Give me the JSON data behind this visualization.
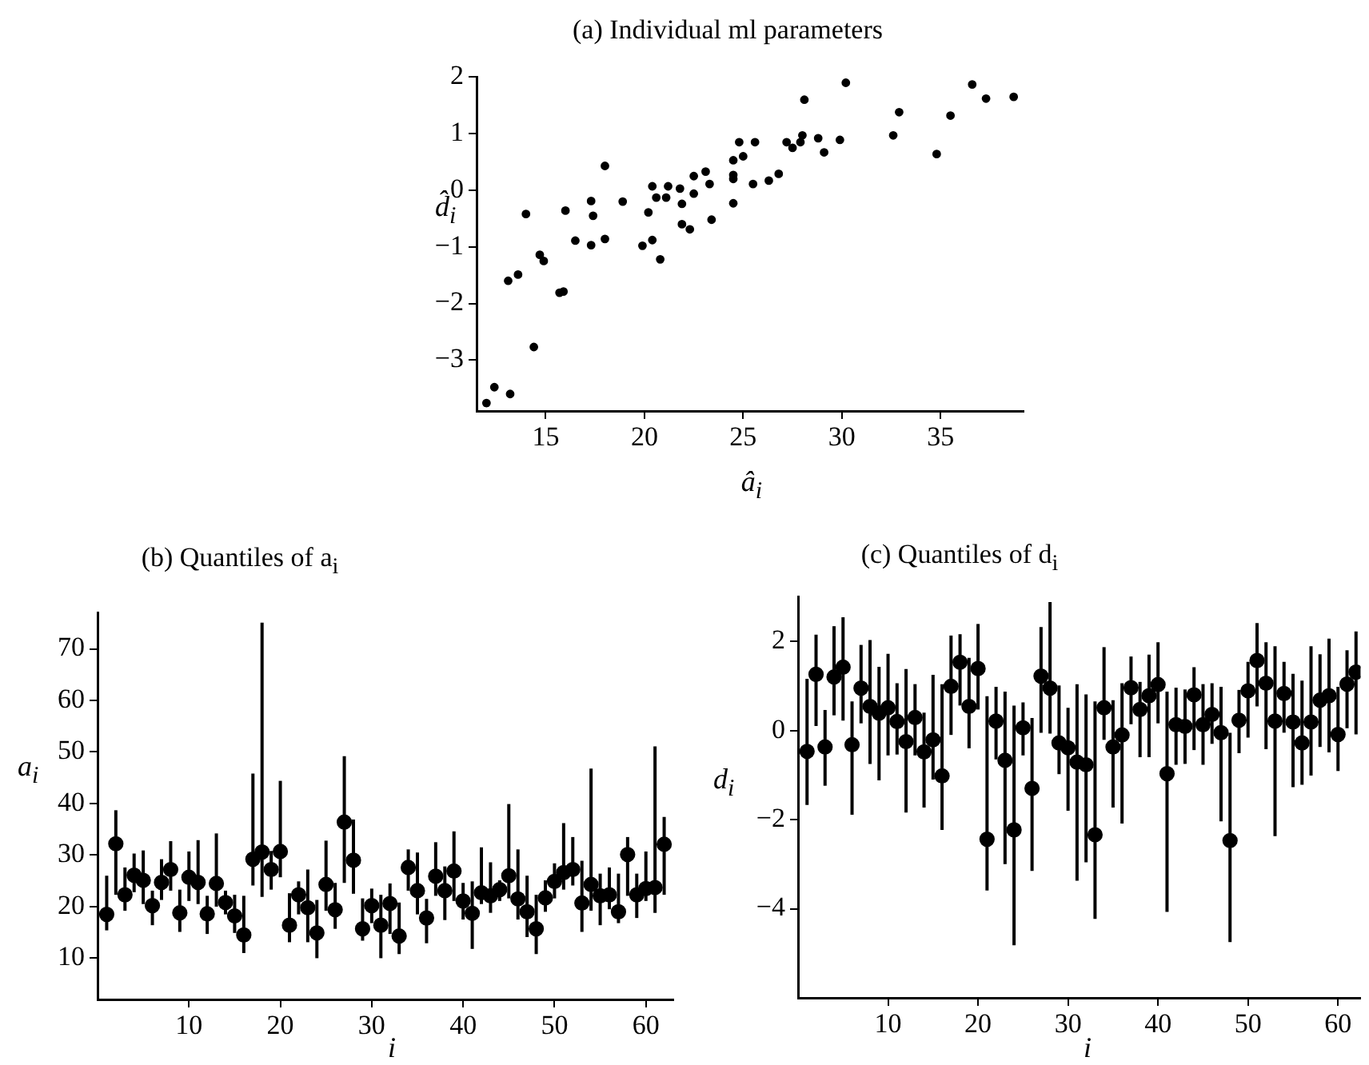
{
  "chart_data": [
    {
      "type": "scatter",
      "title": "(a) Individual ml parameters",
      "xlabel": "â$_{i}$",
      "ylabel": "d̂$_{i}$",
      "marker": "circle",
      "color": "#000000",
      "x": [
        12.0,
        12.4,
        13.2,
        13.1,
        13.6,
        14.0,
        14.4,
        14.7,
        14.9,
        15.7,
        15.9,
        16.0,
        16.5,
        17.3,
        17.3,
        17.4,
        18.0,
        18.0,
        18.9,
        19.9,
        20.2,
        20.4,
        20.4,
        20.6,
        20.8,
        21.1,
        21.2,
        21.8,
        21.9,
        21.9,
        22.3,
        22.5,
        22.5,
        23.1,
        23.3,
        23.4,
        24.5,
        24.5,
        24.5,
        24.5,
        24.8,
        25.0,
        25.5,
        25.6,
        26.3,
        26.8,
        27.2,
        27.5,
        27.9,
        28.0,
        28.1,
        28.8,
        29.1,
        29.9,
        30.2,
        32.6,
        32.9,
        34.8,
        35.5,
        36.6,
        37.3,
        38.7
      ],
      "values": [
        -3.76,
        -3.48,
        -3.6,
        -1.6,
        -1.49,
        -0.42,
        -2.77,
        -1.14,
        -1.25,
        -1.81,
        -1.79,
        -0.36,
        -0.89,
        -0.19,
        -0.97,
        -0.45,
        0.43,
        -0.86,
        -0.2,
        -0.98,
        -0.39,
        0.07,
        -0.88,
        -0.13,
        -1.22,
        -0.13,
        0.07,
        0.03,
        -0.24,
        -0.6,
        -0.69,
        -0.06,
        0.25,
        0.33,
        0.11,
        -0.52,
        0.53,
        0.27,
        0.2,
        -0.23,
        0.85,
        0.6,
        0.11,
        0.85,
        0.17,
        0.29,
        0.85,
        0.75,
        0.85,
        0.97,
        1.6,
        0.92,
        0.67,
        0.89,
        1.9,
        0.97,
        1.38,
        0.64,
        1.32,
        1.87,
        1.62,
        1.65
      ],
      "xlim": [
        11.5,
        39.2
      ],
      "ylim": [
        -3.9,
        2
      ],
      "xticks": [
        15,
        20,
        25,
        30,
        35
      ],
      "yticks": [
        -3,
        -2,
        -1,
        0,
        1,
        2
      ]
    },
    {
      "type": "scatter",
      "title": "(b) Quantiles of a$_{i}$",
      "xlabel": "i",
      "ylabel": "a$_{i}$",
      "marker": "circle",
      "color": "#000000",
      "x": [
        1,
        2,
        3,
        4,
        5,
        6,
        7,
        8,
        9,
        10,
        11,
        12,
        13,
        14,
        15,
        16,
        17,
        18,
        19,
        20,
        21,
        22,
        23,
        24,
        25,
        26,
        27,
        28,
        29,
        30,
        31,
        32,
        33,
        34,
        35,
        36,
        37,
        38,
        39,
        40,
        41,
        42,
        43,
        44,
        45,
        46,
        47,
        48,
        49,
        50,
        51,
        52,
        53,
        54,
        55,
        56,
        57,
        58,
        59,
        60,
        61,
        62
      ],
      "values": [
        18.5,
        32.2,
        22.3,
        26.1,
        25.1,
        20.2,
        24.7,
        27.2,
        18.8,
        25.7,
        24.7,
        18.6,
        24.5,
        20.8,
        18.2,
        14.5,
        29.2,
        30.6,
        27.2,
        30.7,
        16.4,
        22.3,
        19.8,
        14.9,
        24.3,
        19.4,
        36.4,
        29.0,
        15.7,
        20.2,
        16.4,
        20.6,
        14.3,
        27.6,
        23.1,
        17.8,
        25.9,
        23.1,
        26.9,
        21.1,
        18.7,
        22.7,
        22.1,
        23.3,
        26.0,
        21.5,
        19.0,
        15.7,
        21.7,
        24.9,
        26.6,
        27.2,
        20.7,
        24.3,
        22.1,
        22.3,
        19.0,
        30.1,
        22.3,
        23.5,
        23.7,
        32.1
      ],
      "errors": [
        [
          15.4,
          26.0
        ],
        [
          22.3,
          38.7
        ],
        [
          19.2,
          27.6
        ],
        [
          22.8,
          30.3
        ],
        [
          20.5,
          30.9
        ],
        [
          16.4,
          23.1
        ],
        [
          21.3,
          29.2
        ],
        [
          23.1,
          32.7
        ],
        [
          15.1,
          23.3
        ],
        [
          21.1,
          30.7
        ],
        [
          20.5,
          32.9
        ],
        [
          14.7,
          22.1
        ],
        [
          20.0,
          34.2
        ],
        [
          18.5,
          23.1
        ],
        [
          14.9,
          22.3
        ],
        [
          11.0,
          22.1
        ],
        [
          24.1,
          45.8
        ],
        [
          21.9,
          75.1
        ],
        [
          23.3,
          30.8
        ],
        [
          25.7,
          44.4
        ],
        [
          13.1,
          22.6
        ],
        [
          18.5,
          24.9
        ],
        [
          13.1,
          27.2
        ],
        [
          10.0,
          21.3
        ],
        [
          19.2,
          32.8
        ],
        [
          15.7,
          24.6
        ],
        [
          24.6,
          49.2
        ],
        [
          22.5,
          36.9
        ],
        [
          13.4,
          21.6
        ],
        [
          16.8,
          23.5
        ],
        [
          10.0,
          22.3
        ],
        [
          14.7,
          24.5
        ],
        [
          10.8,
          20.8
        ],
        [
          23.1,
          31.1
        ],
        [
          18.5,
          30.5
        ],
        [
          12.9,
          21.5
        ],
        [
          22.1,
          32.5
        ],
        [
          17.4,
          27.8
        ],
        [
          21.1,
          34.6
        ],
        [
          17.5,
          24.6
        ],
        [
          11.8,
          24.9
        ],
        [
          20.5,
          31.5
        ],
        [
          18.8,
          28.6
        ],
        [
          21.1,
          25.1
        ],
        [
          21.6,
          39.9
        ],
        [
          17.5,
          31.1
        ],
        [
          14.1,
          26.0
        ],
        [
          10.8,
          22.3
        ],
        [
          19.0,
          25.1
        ],
        [
          21.6,
          28.4
        ],
        [
          23.3,
          36.2
        ],
        [
          24.1,
          33.5
        ],
        [
          15.1,
          28.9
        ],
        [
          19.2,
          46.8
        ],
        [
          16.4,
          26.4
        ],
        [
          19.5,
          27.6
        ],
        [
          16.8,
          26.4
        ],
        [
          22.1,
          33.5
        ],
        [
          17.8,
          26.4
        ],
        [
          21.1,
          30.7
        ],
        [
          18.8,
          51.1
        ],
        [
          22.3,
          37.4
        ]
      ],
      "xlim": [
        0,
        63
      ],
      "ylim": [
        2,
        77
      ],
      "xticks": [
        10,
        20,
        30,
        40,
        50,
        60
      ],
      "yticks": [
        10,
        20,
        30,
        40,
        50,
        60,
        70
      ]
    },
    {
      "type": "scatter",
      "title": "(c) Quantiles of d$_{i}$",
      "xlabel": "i",
      "ylabel": "d$_{i}$",
      "marker": "circle",
      "color": "#000000",
      "x": [
        1,
        2,
        3,
        4,
        5,
        6,
        7,
        8,
        9,
        10,
        11,
        12,
        13,
        14,
        15,
        16,
        17,
        18,
        19,
        20,
        21,
        22,
        23,
        24,
        25,
        26,
        27,
        28,
        29,
        30,
        31,
        32,
        33,
        34,
        35,
        36,
        37,
        38,
        39,
        40,
        41,
        42,
        43,
        44,
        45,
        46,
        47,
        48,
        49,
        50,
        51,
        52,
        53,
        54,
        55,
        56,
        57,
        58,
        59,
        60,
        61,
        62
      ],
      "values": [
        -0.47,
        1.26,
        -0.37,
        1.2,
        1.42,
        -0.32,
        0.95,
        0.54,
        0.39,
        0.51,
        0.2,
        -0.25,
        0.29,
        -0.48,
        -0.21,
        -1.02,
        0.99,
        1.53,
        0.54,
        1.39,
        -2.44,
        0.21,
        -0.67,
        -2.23,
        0.06,
        -1.3,
        1.22,
        0.95,
        -0.28,
        -0.39,
        -0.71,
        -0.77,
        -2.34,
        0.51,
        -0.37,
        -0.1,
        0.96,
        0.47,
        0.78,
        1.03,
        -0.97,
        0.13,
        0.09,
        0.8,
        0.13,
        0.36,
        -0.05,
        -2.47,
        0.23,
        0.89,
        1.57,
        1.06,
        0.21,
        0.83,
        0.19,
        -0.28,
        0.19,
        0.68,
        0.78,
        -0.09,
        1.04,
        1.31
      ],
      "errors": [
        [
          -1.67,
          1.16
        ],
        [
          0.1,
          2.15
        ],
        [
          -1.24,
          0.46
        ],
        [
          0.34,
          2.34
        ],
        [
          0.22,
          2.54
        ],
        [
          -1.89,
          0.65
        ],
        [
          0.16,
          1.92
        ],
        [
          -0.75,
          2.03
        ],
        [
          -1.12,
          1.43
        ],
        [
          -0.56,
          1.72
        ],
        [
          -0.54,
          1.06
        ],
        [
          -1.84,
          1.38
        ],
        [
          -0.56,
          1.04
        ],
        [
          -1.73,
          0.4
        ],
        [
          -1.1,
          1.25
        ],
        [
          -2.23,
          1.04
        ],
        [
          -0.1,
          2.13
        ],
        [
          0.56,
          2.16
        ],
        [
          -0.4,
          1.63
        ],
        [
          0.47,
          2.39
        ],
        [
          -3.59,
          0.77
        ],
        [
          -0.65,
          0.98
        ],
        [
          -3.0,
          0.87
        ],
        [
          -4.82,
          0.56
        ],
        [
          -0.56,
          0.63
        ],
        [
          -3.15,
          0.28
        ],
        [
          -0.05,
          2.32
        ],
        [
          -0.07,
          2.88
        ],
        [
          -0.98,
          1.01
        ],
        [
          -1.8,
          0.51
        ],
        [
          -3.37,
          1.04
        ],
        [
          -2.96,
          0.81
        ],
        [
          -4.23,
          0.65
        ],
        [
          -0.21,
          1.87
        ],
        [
          -1.73,
          0.68
        ],
        [
          -2.09,
          1.06
        ],
        [
          0.14,
          1.66
        ],
        [
          -0.6,
          1.09
        ],
        [
          -0.6,
          1.7
        ],
        [
          0.16,
          1.98
        ],
        [
          -4.07,
          0.87
        ],
        [
          -0.77,
          0.96
        ],
        [
          -0.75,
          0.92
        ],
        [
          -0.44,
          1.42
        ],
        [
          -0.77,
          1.04
        ],
        [
          -0.3,
          1.06
        ],
        [
          -2.04,
          0.98
        ],
        [
          -4.75,
          -0.05
        ],
        [
          -0.51,
          0.91
        ],
        [
          -0.16,
          1.54
        ],
        [
          0.54,
          2.41
        ],
        [
          -0.42,
          1.98
        ],
        [
          -2.37,
          1.89
        ],
        [
          -0.05,
          1.54
        ],
        [
          -1.27,
          1.27
        ],
        [
          -1.22,
          1.12
        ],
        [
          -1.01,
          1.89
        ],
        [
          -0.37,
          1.71
        ],
        [
          -0.49,
          2.06
        ],
        [
          -0.91,
          0.98
        ],
        [
          0.05,
          1.8
        ],
        [
          -0.09,
          2.22
        ]
      ],
      "xlim": [
        0,
        62.5
      ],
      "ylim": [
        -6,
        3
      ],
      "xticks": [
        10,
        20,
        30,
        40,
        50,
        60
      ],
      "yticks": [
        -4,
        -2,
        0,
        2
      ]
    }
  ]
}
